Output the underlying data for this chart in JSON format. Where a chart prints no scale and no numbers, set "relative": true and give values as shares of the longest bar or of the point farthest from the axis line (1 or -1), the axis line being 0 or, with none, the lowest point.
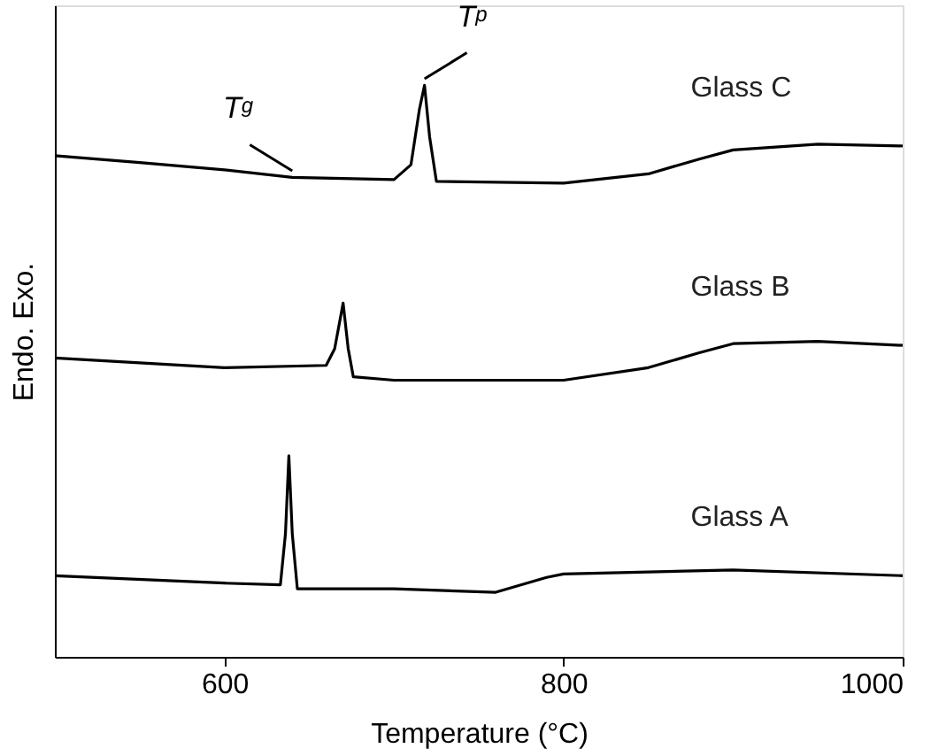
{
  "chart_data": {
    "type": "line",
    "relative": true,
    "xlabel": "Temperature (°C)",
    "ylabel": "Endo.    Exo.",
    "xlim": [
      500,
      1000
    ],
    "xticks": [
      600,
      800,
      1000
    ],
    "tick_labels": "x",
    "grid": false,
    "legend": false,
    "marker": "none",
    "line_style": "solid",
    "series": [
      {
        "name": "Glass C",
        "color": "#000000",
        "x": [
          500,
          550,
          600,
          640,
          700,
          710,
          715,
          718,
          721,
          725,
          800,
          850,
          880,
          900,
          950,
          1000
        ],
        "values": [
          0.877,
          0.865,
          0.852,
          0.839,
          0.835,
          0.861,
          0.958,
          1,
          0.91,
          0.832,
          0.829,
          0.845,
          0.871,
          0.887,
          0.897,
          0.894
        ]
      },
      {
        "name": "Glass B",
        "color": "#000000",
        "x": [
          500,
          600,
          660,
          665,
          670,
          673,
          676,
          700,
          800,
          850,
          880,
          900,
          950,
          1000
        ],
        "values": [
          0.523,
          0.506,
          0.51,
          0.539,
          0.619,
          0.539,
          0.49,
          0.484,
          0.484,
          0.506,
          0.532,
          0.548,
          0.552,
          0.545
        ]
      },
      {
        "name": "Glass A",
        "color": "#000000",
        "x": [
          500,
          600,
          633,
          636,
          638,
          640,
          643,
          700,
          760,
          790,
          800,
          900,
          1000
        ],
        "values": [
          0.142,
          0.129,
          0.126,
          0.216,
          0.352,
          0.216,
          0.119,
          0.119,
          0.113,
          0.139,
          0.145,
          0.152,
          0.142
        ]
      }
    ],
    "annotations": [
      {
        "text": "T$_{g}$",
        "x": 640,
        "y": 0.839
      },
      {
        "text": "T$_{p}$",
        "x": 718,
        "y": 1
      }
    ]
  }
}
